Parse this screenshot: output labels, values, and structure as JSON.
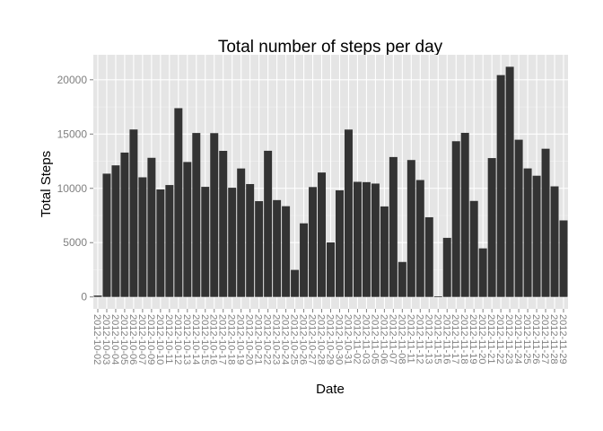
{
  "chart_data": {
    "type": "bar",
    "title": "Total number of steps per day",
    "xlabel": "Date",
    "ylabel": "Total Steps",
    "ylim": [
      -1100,
      22300
    ],
    "yticks": [
      0,
      5000,
      10000,
      15000,
      20000
    ],
    "grid": true,
    "legend": "none",
    "colors": {
      "panel": "#e5e5e5",
      "grid_major": "#ffffff",
      "grid_minor": "#f2f2f2",
      "bar": "#333333",
      "tick_text": "#7f7f7f"
    },
    "categories": [
      "2012-10-02",
      "2012-10-03",
      "2012-10-04",
      "2012-10-05",
      "2012-10-06",
      "2012-10-07",
      "2012-10-09",
      "2012-10-10",
      "2012-10-11",
      "2012-10-12",
      "2012-10-13",
      "2012-10-14",
      "2012-10-15",
      "2012-10-16",
      "2012-10-17",
      "2012-10-18",
      "2012-10-19",
      "2012-10-20",
      "2012-10-21",
      "2012-10-22",
      "2012-10-23",
      "2012-10-24",
      "2012-10-25",
      "2012-10-26",
      "2012-10-27",
      "2012-10-28",
      "2012-10-29",
      "2012-10-30",
      "2012-10-31",
      "2012-11-02",
      "2012-11-03",
      "2012-11-05",
      "2012-11-06",
      "2012-11-07",
      "2012-11-08",
      "2012-11-11",
      "2012-11-12",
      "2012-11-13",
      "2012-11-15",
      "2012-11-16",
      "2012-11-17",
      "2012-11-18",
      "2012-11-19",
      "2012-11-20",
      "2012-11-21",
      "2012-11-22",
      "2012-11-23",
      "2012-11-24",
      "2012-11-25",
      "2012-11-26",
      "2012-11-27",
      "2012-11-28",
      "2012-11-29"
    ],
    "values": [
      126,
      11352,
      12116,
      13294,
      15420,
      11015,
      12811,
      9900,
      10304,
      17382,
      12426,
      15098,
      10139,
      15084,
      13452,
      10056,
      11829,
      10395,
      8821,
      13460,
      8918,
      8355,
      2492,
      6778,
      10119,
      11458,
      5018,
      9819,
      15414,
      10600,
      10571,
      10439,
      8334,
      12883,
      3219,
      12608,
      10765,
      7336,
      41,
      5441,
      14339,
      15110,
      8841,
      4472,
      12787,
      20427,
      21194,
      14478,
      11834,
      11162,
      13646,
      10183,
      7047
    ]
  }
}
